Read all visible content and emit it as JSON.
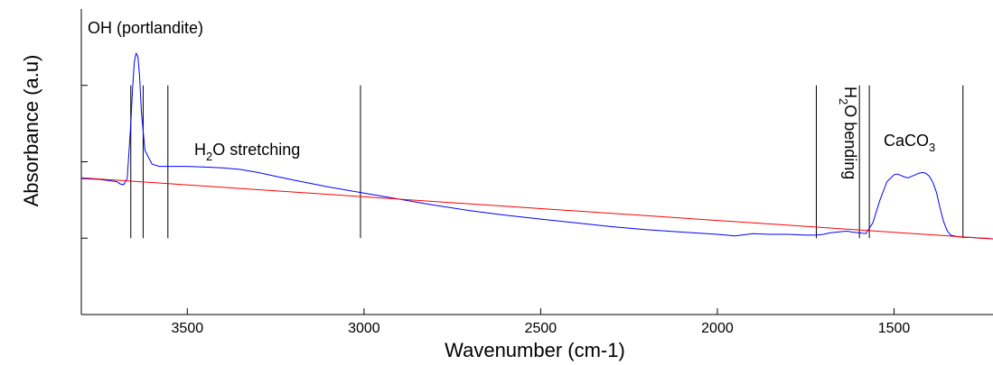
{
  "chart_data": {
    "type": "line",
    "title": "",
    "xlabel": "Wavenumber (cm-1)",
    "ylabel": "Absorbance (a.u)",
    "x_reversed": true,
    "xlim": [
      3800,
      1220
    ],
    "ylim": [
      -1,
      3
    ],
    "x_ticks": [
      3500,
      3000,
      2500,
      2000,
      1500
    ],
    "x_tick_labels": [
      "3500",
      "3000",
      "2500",
      "2000",
      "1500"
    ],
    "y_ticks": [
      0,
      1,
      2
    ],
    "grid": false,
    "series": [
      {
        "color": "#0000ff",
        "x": [
          3800,
          3750,
          3700,
          3690,
          3680,
          3670,
          3660,
          3655,
          3650,
          3645,
          3640,
          3635,
          3630,
          3620,
          3600,
          3580,
          3560,
          3540,
          3500,
          3450,
          3400,
          3350,
          3300,
          3250,
          3200,
          3100,
          3000,
          2900,
          2800,
          2700,
          2600,
          2500,
          2400,
          2300,
          2200,
          2100,
          2000,
          1950,
          1900,
          1850,
          1800,
          1750,
          1720,
          1700,
          1680,
          1660,
          1640,
          1630,
          1620,
          1600,
          1580,
          1560,
          1540,
          1520,
          1500,
          1490,
          1480,
          1470,
          1460,
          1450,
          1440,
          1430,
          1420,
          1410,
          1400,
          1390,
          1380,
          1370,
          1360,
          1350,
          1340,
          1320,
          1300,
          1280,
          1260,
          1240,
          1220
        ],
        "y": [
          0.78,
          0.77,
          0.74,
          0.71,
          0.7,
          0.78,
          1.5,
          1.96,
          2.31,
          2.42,
          2.38,
          2.12,
          1.65,
          1.15,
          0.97,
          0.94,
          0.94,
          0.94,
          0.94,
          0.93,
          0.92,
          0.9,
          0.86,
          0.81,
          0.76,
          0.67,
          0.59,
          0.51,
          0.43,
          0.36,
          0.3,
          0.25,
          0.2,
          0.15,
          0.11,
          0.08,
          0.05,
          0.03,
          0.06,
          0.05,
          0.05,
          0.04,
          0.04,
          0.05,
          0.07,
          0.08,
          0.09,
          0.09,
          0.08,
          0.07,
          0.06,
          0.2,
          0.5,
          0.74,
          0.83,
          0.84,
          0.82,
          0.8,
          0.79,
          0.81,
          0.83,
          0.85,
          0.86,
          0.85,
          0.81,
          0.73,
          0.6,
          0.4,
          0.22,
          0.1,
          0.04,
          0.02,
          0.01,
          0.01,
          0.0,
          0.0,
          -0.01
        ]
      },
      {
        "color": "#ff0000",
        "x": [
          3800,
          1220
        ],
        "y": [
          0.79,
          -0.01
        ]
      }
    ],
    "vertical_markers": [
      3660,
      3625,
      3555,
      3010,
      1720,
      1598,
      1570,
      1305
    ],
    "annotations": {
      "oh": "OH (portlandite)",
      "h2o_stretch_h": "H",
      "h2o_stretch_sub": "2",
      "h2o_stretch_rest": "O stretching",
      "h2o_bend_h": "H",
      "h2o_bend_sub": "2",
      "h2o_bend_rest": "O bending",
      "caco_main": "CaCO",
      "caco_sub": "3"
    }
  }
}
